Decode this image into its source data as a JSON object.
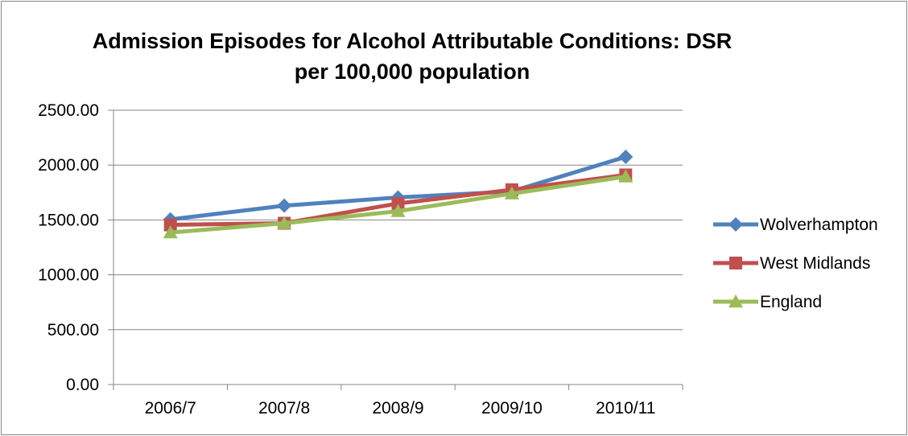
{
  "chart_data": {
    "type": "line",
    "title": "Admission Episodes for Alcohol Attributable Conditions: DSR per 100,000 population",
    "categories": [
      "2006/7",
      "2007/8",
      "2008/9",
      "2009/10",
      "2010/11"
    ],
    "ylim": [
      0,
      2500
    ],
    "yticks": [
      "0.00",
      "500.00",
      "1000.00",
      "1500.00",
      "2000.00",
      "2500.00"
    ],
    "ytick_values": [
      0,
      500,
      1000,
      1500,
      2000,
      2500
    ],
    "grid": true,
    "legend_position": "right",
    "series": [
      {
        "name": "Wolverhampton",
        "values": [
          1505,
          1630,
          1705,
          1760,
          2075
        ],
        "color": "#4F81BD",
        "marker": "diamond"
      },
      {
        "name": "West Midlands",
        "values": [
          1455,
          1470,
          1650,
          1775,
          1910
        ],
        "color": "#C0504D",
        "marker": "square"
      },
      {
        "name": "England",
        "values": [
          1385,
          1470,
          1580,
          1740,
          1895
        ],
        "color": "#9BBB59",
        "marker": "triangle"
      }
    ]
  }
}
